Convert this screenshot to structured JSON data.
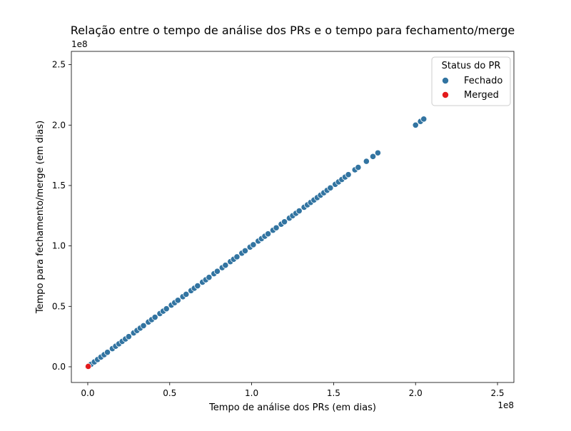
{
  "chart_data": {
    "type": "scatter",
    "title": "Relação entre o tempo de análise dos PRs e o tempo para fechamento/merge",
    "xlabel": "Tempo de análise dos PRs (em dias)",
    "ylabel": "Tempo para fechamento/merge (em dias)",
    "x_offset_text": "1e8",
    "y_offset_text": "1e8",
    "xlim": [
      -0.1,
      2.6
    ],
    "ylim": [
      -0.13,
      2.61
    ],
    "xticks": [
      0.0,
      0.5,
      1.0,
      1.5,
      2.0,
      2.5
    ],
    "yticks": [
      0.0,
      0.5,
      1.0,
      1.5,
      2.0,
      2.5
    ],
    "xtick_labels": [
      "0.0",
      "0.5",
      "1.0",
      "1.5",
      "2.0",
      "2.5"
    ],
    "ytick_labels": [
      "0.0",
      "0.5",
      "1.0",
      "1.5",
      "2.0",
      "2.5"
    ],
    "grid": false,
    "legend": {
      "title": "Status do PR",
      "position": "top-right"
    },
    "series": [
      {
        "name": "Fechado",
        "color": "#3274a1",
        "points": [
          [
            0.02,
            0.02
          ],
          [
            0.04,
            0.04
          ],
          [
            0.06,
            0.06
          ],
          [
            0.08,
            0.08
          ],
          [
            0.1,
            0.1
          ],
          [
            0.12,
            0.12
          ],
          [
            0.15,
            0.15
          ],
          [
            0.17,
            0.17
          ],
          [
            0.19,
            0.19
          ],
          [
            0.21,
            0.21
          ],
          [
            0.23,
            0.23
          ],
          [
            0.25,
            0.25
          ],
          [
            0.28,
            0.28
          ],
          [
            0.3,
            0.3
          ],
          [
            0.32,
            0.32
          ],
          [
            0.34,
            0.34
          ],
          [
            0.37,
            0.37
          ],
          [
            0.39,
            0.39
          ],
          [
            0.41,
            0.41
          ],
          [
            0.44,
            0.44
          ],
          [
            0.46,
            0.46
          ],
          [
            0.48,
            0.48
          ],
          [
            0.51,
            0.51
          ],
          [
            0.53,
            0.53
          ],
          [
            0.55,
            0.55
          ],
          [
            0.58,
            0.58
          ],
          [
            0.6,
            0.6
          ],
          [
            0.63,
            0.63
          ],
          [
            0.65,
            0.65
          ],
          [
            0.67,
            0.67
          ],
          [
            0.7,
            0.7
          ],
          [
            0.72,
            0.72
          ],
          [
            0.74,
            0.74
          ],
          [
            0.77,
            0.77
          ],
          [
            0.79,
            0.79
          ],
          [
            0.82,
            0.82
          ],
          [
            0.84,
            0.84
          ],
          [
            0.87,
            0.87
          ],
          [
            0.89,
            0.89
          ],
          [
            0.91,
            0.91
          ],
          [
            0.94,
            0.94
          ],
          [
            0.96,
            0.96
          ],
          [
            0.99,
            0.99
          ],
          [
            1.01,
            1.01
          ],
          [
            1.04,
            1.04
          ],
          [
            1.06,
            1.06
          ],
          [
            1.08,
            1.08
          ],
          [
            1.1,
            1.1
          ],
          [
            1.13,
            1.13
          ],
          [
            1.15,
            1.15
          ],
          [
            1.18,
            1.18
          ],
          [
            1.2,
            1.2
          ],
          [
            1.23,
            1.23
          ],
          [
            1.25,
            1.25
          ],
          [
            1.27,
            1.27
          ],
          [
            1.29,
            1.29
          ],
          [
            1.32,
            1.32
          ],
          [
            1.34,
            1.34
          ],
          [
            1.36,
            1.36
          ],
          [
            1.38,
            1.38
          ],
          [
            1.4,
            1.4
          ],
          [
            1.42,
            1.42
          ],
          [
            1.44,
            1.44
          ],
          [
            1.46,
            1.46
          ],
          [
            1.48,
            1.48
          ],
          [
            1.51,
            1.51
          ],
          [
            1.53,
            1.53
          ],
          [
            1.55,
            1.55
          ],
          [
            1.57,
            1.57
          ],
          [
            1.59,
            1.59
          ],
          [
            1.63,
            1.63
          ],
          [
            1.65,
            1.65
          ],
          [
            1.7,
            1.7
          ],
          [
            1.74,
            1.74
          ],
          [
            1.77,
            1.77
          ],
          [
            2.0,
            2.0
          ],
          [
            2.03,
            2.03
          ],
          [
            2.05,
            2.05
          ]
        ]
      },
      {
        "name": "Merged",
        "color": "#e31a1c",
        "points": [
          [
            0.0,
            0.0
          ],
          [
            0.003,
            0.003
          ]
        ]
      }
    ]
  }
}
